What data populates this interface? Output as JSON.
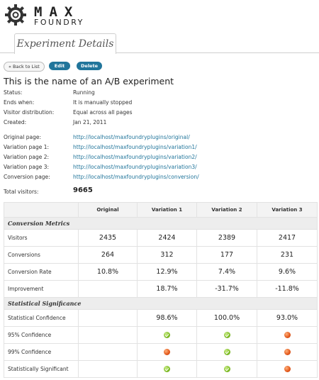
{
  "logo": {
    "line1": "MAX",
    "line2": "FOUNDRY"
  },
  "tab": {
    "label": "Experiment Details"
  },
  "buttons": {
    "back": "« Back to List",
    "edit": "Edit",
    "delete": "Delete"
  },
  "experiment": {
    "title": "This is the name of an A/B experiment",
    "info": [
      {
        "label": "Status:",
        "value": "Running"
      },
      {
        "label": "Ends when:",
        "value": "It is manually stopped"
      },
      {
        "label": "Visitor distribution:",
        "value": "Equal across all pages"
      },
      {
        "label": "Created:",
        "value": "Jan 21, 2011"
      }
    ],
    "pages": [
      {
        "label": "Original page:",
        "url": "http://localhost/maxfoundryplugins/original/"
      },
      {
        "label": "Variation page 1:",
        "url": "http://localhost/maxfoundryplugins/variation1/"
      },
      {
        "label": "Variation page 2:",
        "url": "http://localhost/maxfoundryplugins/variation2/"
      },
      {
        "label": "Variation page 3:",
        "url": "http://localhost/maxfoundryplugins/variation3/"
      },
      {
        "label": "Conversion page:",
        "url": "http://localhost/maxfoundryplugins/conversion/"
      }
    ],
    "total": {
      "label": "Total visitors:",
      "value": "9665"
    }
  },
  "table": {
    "headers": [
      "",
      "Original",
      "Variation 1",
      "Variation 2",
      "Variation 3"
    ],
    "sections": {
      "conversion": "Conversion Metrics",
      "significance": "Statistical Significance"
    },
    "rows": {
      "visitors": {
        "label": "Visitors",
        "values": [
          "2435",
          "2424",
          "2389",
          "2417"
        ]
      },
      "conversions": {
        "label": "Conversions",
        "values": [
          "264",
          "312",
          "177",
          "231"
        ]
      },
      "rate": {
        "label": "Conversion Rate",
        "values": [
          "10.8%",
          "12.9%",
          "7.4%",
          "9.6%"
        ]
      },
      "improvement": {
        "label": "Improvement",
        "values": [
          "",
          "18.7%",
          "-31.7%",
          "-11.8%"
        ]
      },
      "confidence": {
        "label": "Statistical Confidence",
        "values": [
          "",
          "98.6%",
          "100.0%",
          "93.0%"
        ]
      },
      "c95": {
        "label": "95% Confidence",
        "values": [
          "",
          "yes",
          "yes",
          "no"
        ]
      },
      "c99": {
        "label": "99% Confidence",
        "values": [
          "",
          "no",
          "yes",
          "no"
        ]
      },
      "significant": {
        "label": "Statistically Significant",
        "values": [
          "",
          "yes",
          "yes",
          "no"
        ]
      }
    }
  },
  "colors": {
    "accent": "#21759b",
    "positive": "#2e9e26",
    "negative": "#d9262a"
  }
}
